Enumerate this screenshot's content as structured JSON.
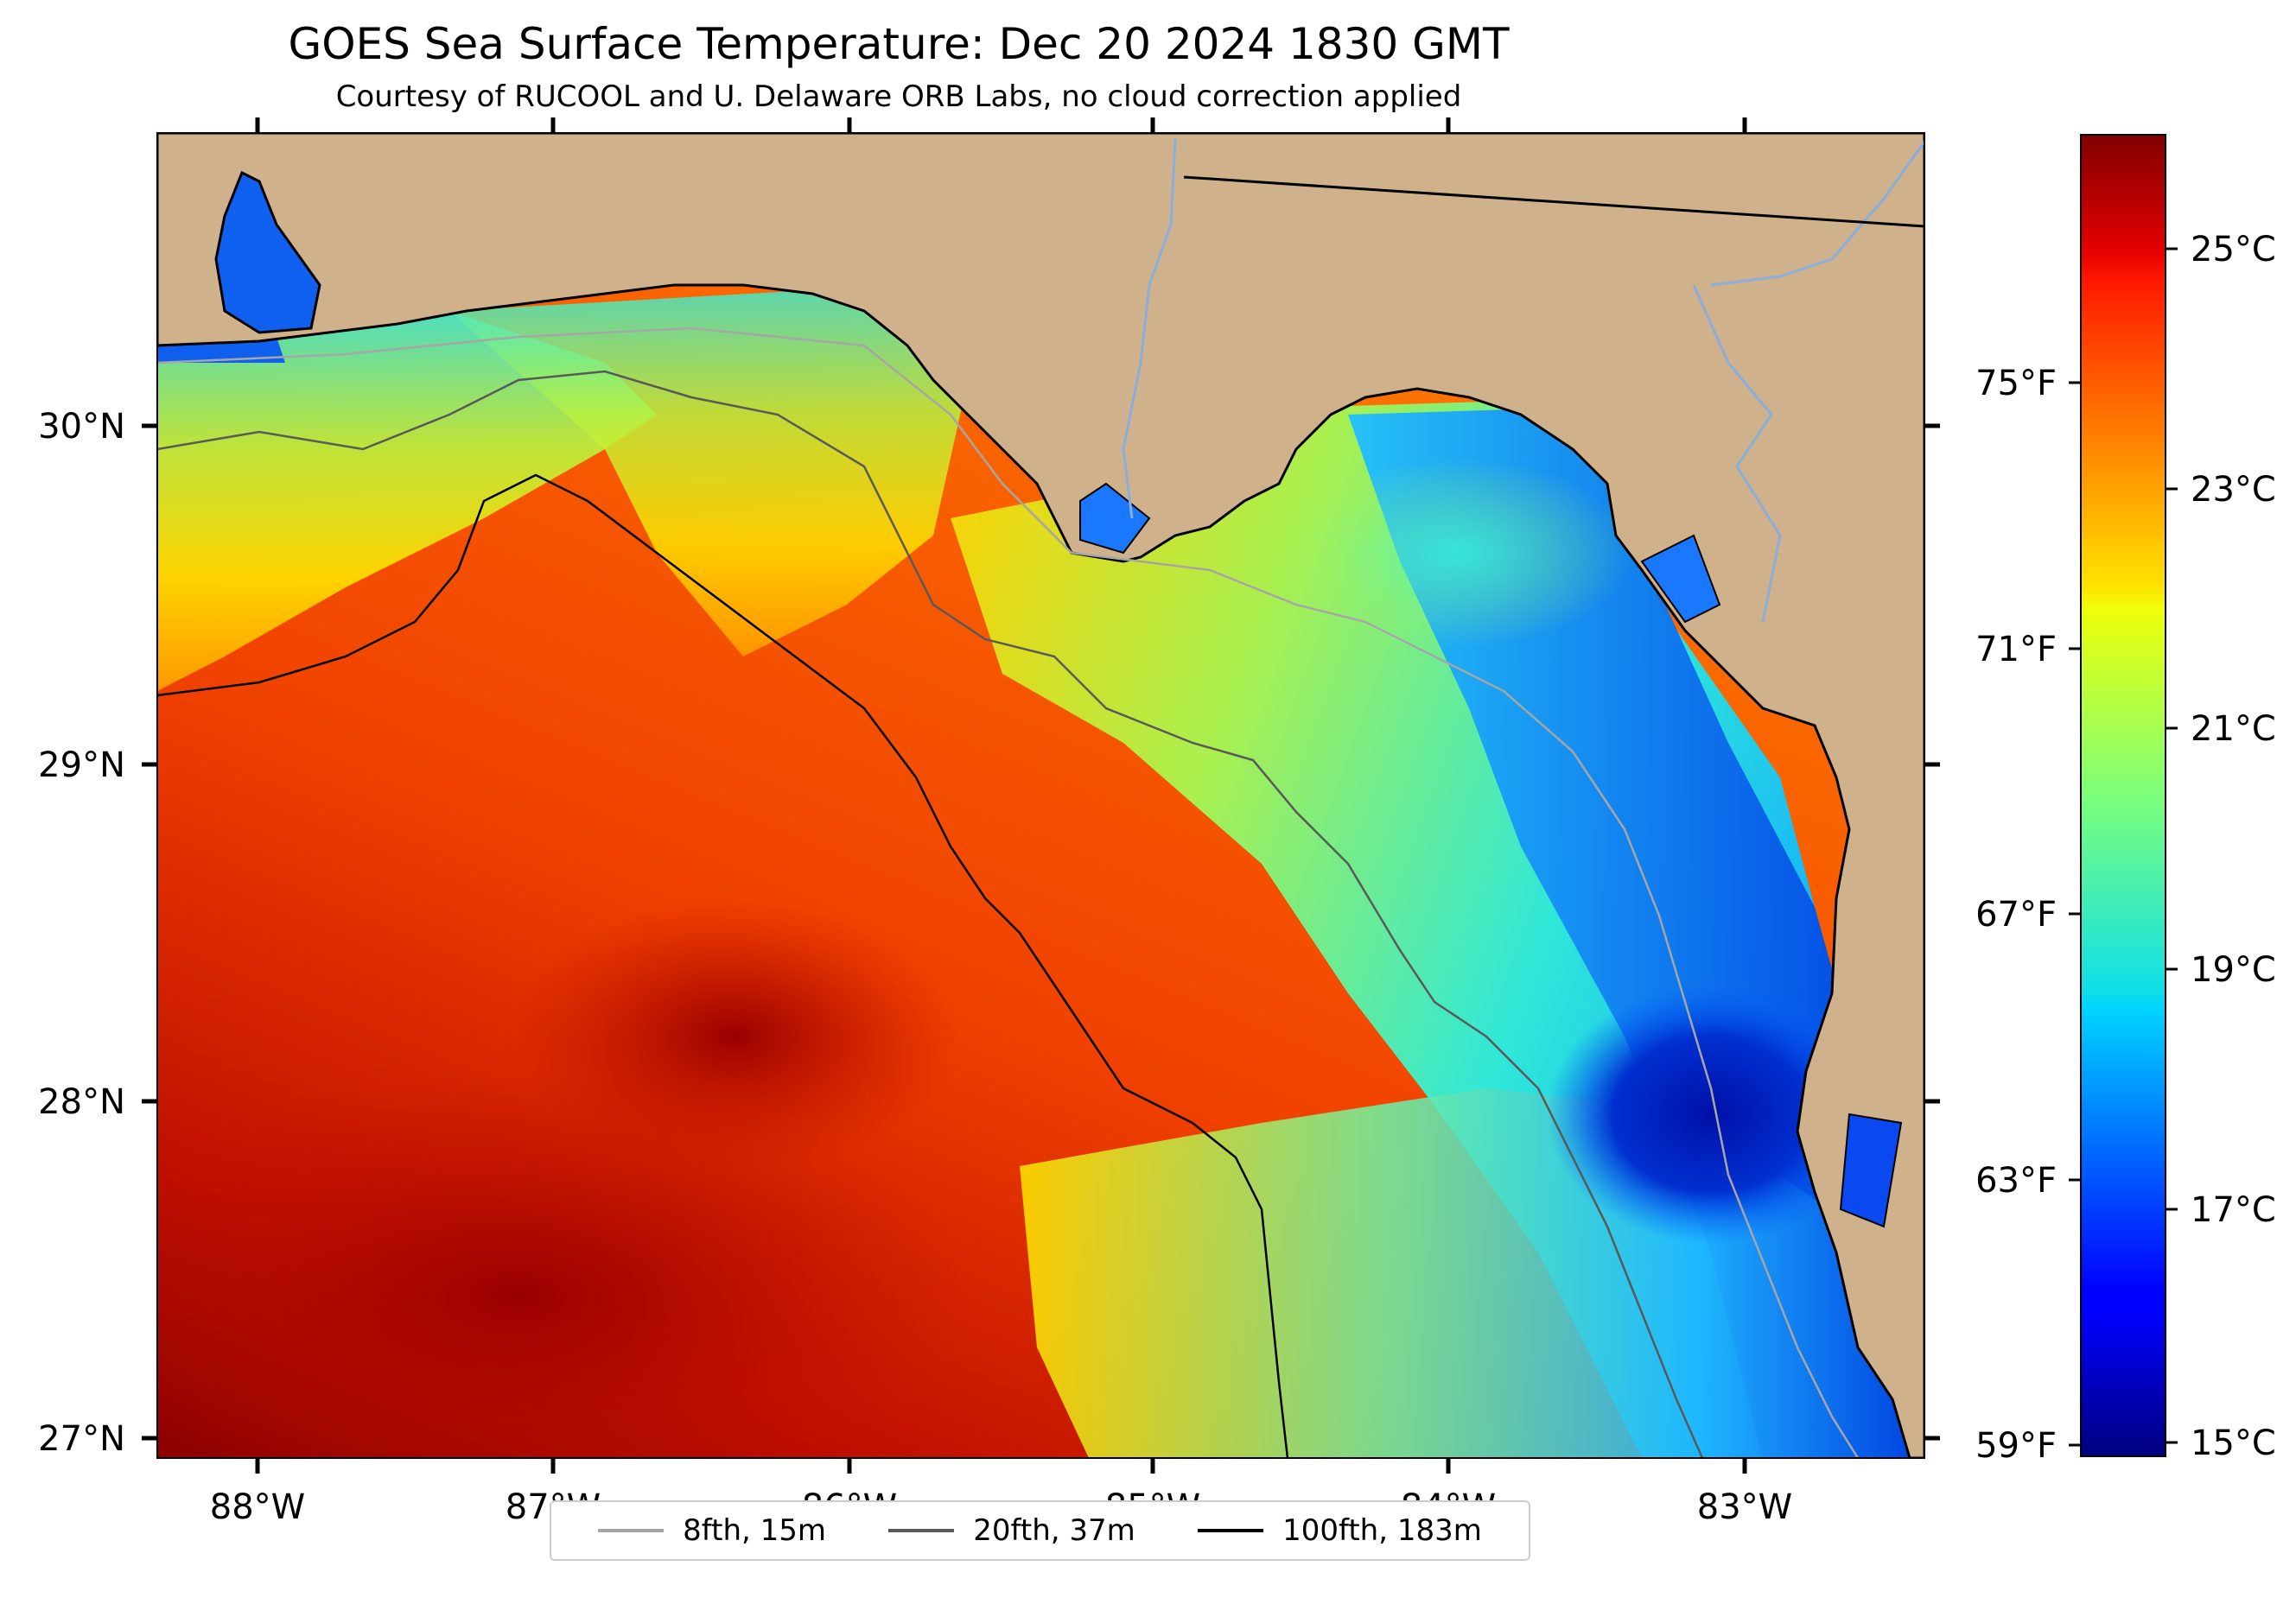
{
  "header": {
    "title": "GOES Sea Surface Temperature: Dec 20 2024 1830 GMT",
    "subtitle": "Courtesy of RUCOOL and U. Delaware ORB Labs, no cloud correction applied"
  },
  "map": {
    "land_color": "#cfb18c",
    "coast_color": "#000000",
    "river_color": "#8aaedc",
    "lon_labels": [
      "88°W",
      "87°W",
      "86°W",
      "85°W",
      "84°W",
      "83°W"
    ],
    "lat_labels": [
      "30°N",
      "29°N",
      "28°N",
      "27°N"
    ]
  },
  "colorbar": {
    "colormap": "jet",
    "range_c": [
      14.8,
      26.3
    ],
    "celsius_labels": [
      "25°C",
      "23°C",
      "21°C",
      "19°C",
      "17°C",
      "15°C"
    ],
    "fahrenheit_labels": [
      "75°F",
      "71°F",
      "67°F",
      "63°F",
      "59°F"
    ]
  },
  "legend": {
    "items": [
      {
        "label": "8fth, 15m",
        "color": "#a6a6a6"
      },
      {
        "label": "20fth, 37m",
        "color": "#595959"
      },
      {
        "label": "100fth, 183m",
        "color": "#000000"
      }
    ]
  }
}
